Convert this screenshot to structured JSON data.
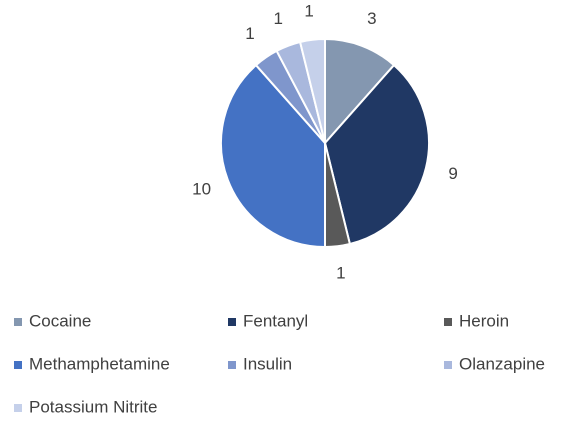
{
  "chart_data": {
    "type": "pie",
    "categories": [
      "Cocaine",
      "Fentanyl",
      "Heroin",
      "Methamphetamine",
      "Insulin",
      "Olanzapine",
      "Potassium Nitrite"
    ],
    "values": [
      3,
      9,
      1,
      10,
      1,
      1,
      1
    ],
    "colors": [
      "#8497b0",
      "#203864",
      "#595959",
      "#4472c4",
      "#7f96cc",
      "#a9b8dd",
      "#c5d0ea"
    ],
    "legend": "bottom"
  }
}
